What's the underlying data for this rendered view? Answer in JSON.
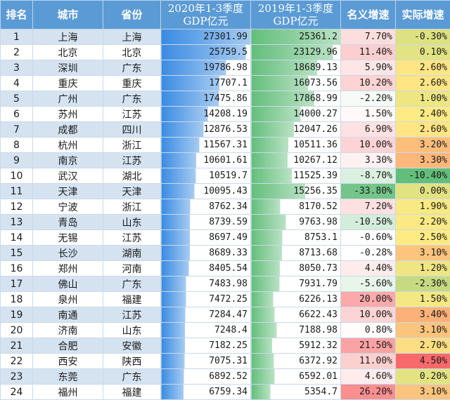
{
  "header": {
    "rank": "排名",
    "city": "城市",
    "province": "省份",
    "gdp2020_line1": "2020年1-3季度",
    "gdp2020_line2": "GDP亿元",
    "gdp2019_line1": "2019年1-3季度",
    "gdp2019_line2": "GDP亿元",
    "nominal": "名义增速",
    "real": "实际增速"
  },
  "colors": {
    "header_bg": "#5b9bd5",
    "bar_2020": "#3a8be2",
    "bar_2019": "#63be7b",
    "nominal_pos": "#f8696b",
    "nominal_neg": "#63be7b",
    "real_high": "#f8696b",
    "real_mid": "#ffeb84",
    "real_low": "#63be7b"
  },
  "rows": [
    {
      "rank": "1",
      "city": "上海",
      "province": "上海",
      "gdp2020": "27301.99",
      "gdp2019": "25361.2",
      "nominal": "7.70%",
      "real": "-0.30%"
    },
    {
      "rank": "2",
      "city": "北京",
      "province": "北京",
      "gdp2020": "25759.5",
      "gdp2019": "23129.96",
      "nominal": "11.40%",
      "real": "0.10%"
    },
    {
      "rank": "3",
      "city": "深圳",
      "province": "广东",
      "gdp2020": "19786.98",
      "gdp2019": "18689.13",
      "nominal": "5.90%",
      "real": "2.60%"
    },
    {
      "rank": "4",
      "city": "重庆",
      "province": "重庆",
      "gdp2020": "17707.1",
      "gdp2019": "16073.56",
      "nominal": "10.20%",
      "real": "2.60%"
    },
    {
      "rank": "5",
      "city": "广州",
      "province": "广东",
      "gdp2020": "17475.86",
      "gdp2019": "17868.99",
      "nominal": "-2.20%",
      "real": "1.00%"
    },
    {
      "rank": "6",
      "city": "苏州",
      "province": "江苏",
      "gdp2020": "14208.19",
      "gdp2019": "14000.27",
      "nominal": "1.50%",
      "real": "2.40%"
    },
    {
      "rank": "7",
      "city": "成都",
      "province": "四川",
      "gdp2020": "12876.53",
      "gdp2019": "12047.26",
      "nominal": "6.90%",
      "real": "2.60%"
    },
    {
      "rank": "8",
      "city": "杭州",
      "province": "浙江",
      "gdp2020": "11567.31",
      "gdp2019": "10511.36",
      "nominal": "10.00%",
      "real": "3.20%"
    },
    {
      "rank": "9",
      "city": "南京",
      "province": "江苏",
      "gdp2020": "10601.61",
      "gdp2019": "10267.12",
      "nominal": "3.30%",
      "real": "3.30%"
    },
    {
      "rank": "10",
      "city": "武汉",
      "province": "湖北",
      "gdp2020": "10519.7",
      "gdp2019": "11525.39",
      "nominal": "-8.70%",
      "real": "-10.40%"
    },
    {
      "rank": "11",
      "city": "天津",
      "province": "天津",
      "gdp2020": "10095.43",
      "gdp2019": "15256.35",
      "nominal": "-33.80%",
      "real": "0.00%"
    },
    {
      "rank": "12",
      "city": "宁波",
      "province": "浙江",
      "gdp2020": "8762.34",
      "gdp2019": "8170.52",
      "nominal": "7.20%",
      "real": "1.90%"
    },
    {
      "rank": "13",
      "city": "青岛",
      "province": "山东",
      "gdp2020": "8739.59",
      "gdp2019": "9763.98",
      "nominal": "-10.50%",
      "real": "2.20%"
    },
    {
      "rank": "14",
      "city": "无锡",
      "province": "江苏",
      "gdp2020": "8697.49",
      "gdp2019": "8753.1",
      "nominal": "-0.60%",
      "real": "2.50%"
    },
    {
      "rank": "15",
      "city": "长沙",
      "province": "湖南",
      "gdp2020": "8689.33",
      "gdp2019": "8713.68",
      "nominal": "-0.28%",
      "real": "3.10%"
    },
    {
      "rank": "16",
      "city": "郑州",
      "province": "河南",
      "gdp2020": "8405.54",
      "gdp2019": "8050.73",
      "nominal": "4.40%",
      "real": "1.20%"
    },
    {
      "rank": "17",
      "city": "佛山",
      "province": "广东",
      "gdp2020": "7483.98",
      "gdp2019": "7931.79",
      "nominal": "-5.60%",
      "real": "-2.30%"
    },
    {
      "rank": "18",
      "city": "泉州",
      "province": "福建",
      "gdp2020": "7472.25",
      "gdp2019": "6226.13",
      "nominal": "20.00%",
      "real": "1.50%"
    },
    {
      "rank": "19",
      "city": "南通",
      "province": "江苏",
      "gdp2020": "7284.47",
      "gdp2019": "6622.43",
      "nominal": "10.00%",
      "real": "3.40%"
    },
    {
      "rank": "20",
      "city": "济南",
      "province": "山东",
      "gdp2020": "7248.4",
      "gdp2019": "7188.98",
      "nominal": "0.80%",
      "real": "3.10%"
    },
    {
      "rank": "21",
      "city": "合肥",
      "province": "安徽",
      "gdp2020": "7182.25",
      "gdp2019": "5912.32",
      "nominal": "21.50%",
      "real": "2.70%"
    },
    {
      "rank": "22",
      "city": "西安",
      "province": "陕西",
      "gdp2020": "7075.31",
      "gdp2019": "6372.92",
      "nominal": "11.00%",
      "real": "4.50%"
    },
    {
      "rank": "23",
      "city": "东莞",
      "province": "广东",
      "gdp2020": "6892.52",
      "gdp2019": "6592.01",
      "nominal": "4.60%",
      "real": "0.20%"
    },
    {
      "rank": "24",
      "city": "福州",
      "province": "福建",
      "gdp2020": "6759.34",
      "gdp2019": "5354.7",
      "nominal": "26.20%",
      "real": "3.10%"
    }
  ]
}
